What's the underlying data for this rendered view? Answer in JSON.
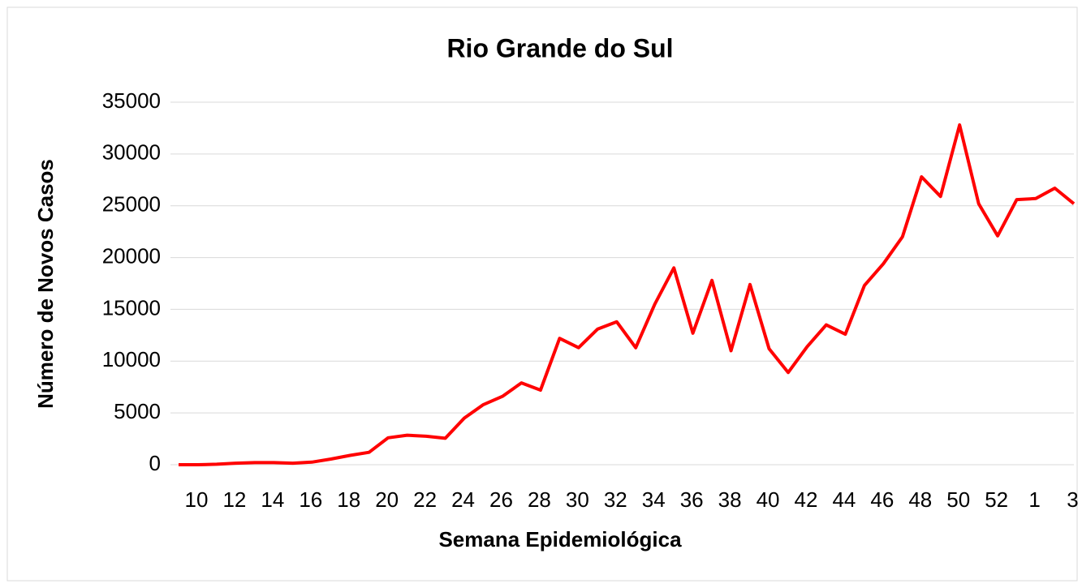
{
  "chart_data": {
    "type": "line",
    "title": "Rio Grande do Sul",
    "x_label": "Semana Epidemiológica",
    "y_label": "Número de Novos Casos",
    "categories": [
      "10",
      null,
      "12",
      null,
      "14",
      null,
      "16",
      null,
      "18",
      null,
      "20",
      null,
      "22",
      null,
      "24",
      null,
      "26",
      null,
      "28",
      null,
      "30",
      null,
      "32",
      null,
      "34",
      null,
      "36",
      null,
      "38",
      null,
      "40",
      null,
      "42",
      null,
      "44",
      null,
      "46",
      null,
      "48",
      null,
      "50",
      null,
      "52",
      null,
      "1",
      null,
      "3",
      null
    ],
    "series": [
      {
        "name": "Rio Grande do Sul",
        "color": "#ff0000",
        "values": [
          0,
          0,
          50,
          150,
          200,
          200,
          150,
          250,
          550,
          900,
          1200,
          2600,
          2850,
          2750,
          2550,
          4500,
          5800,
          6600,
          7900,
          7200,
          12200,
          11300,
          13100,
          13800,
          11300,
          15500,
          19000,
          12700,
          17800,
          11000,
          17400,
          11200,
          8900,
          11400,
          13500,
          12600,
          17300,
          19400,
          22000,
          27800,
          25900,
          32800,
          25200,
          22100,
          25600,
          25700,
          26700,
          25200
        ]
      }
    ],
    "ylim": [
      0,
      35000
    ],
    "yticks": [
      0,
      5000,
      10000,
      15000,
      20000,
      25000,
      30000,
      35000
    ],
    "grid": true
  }
}
